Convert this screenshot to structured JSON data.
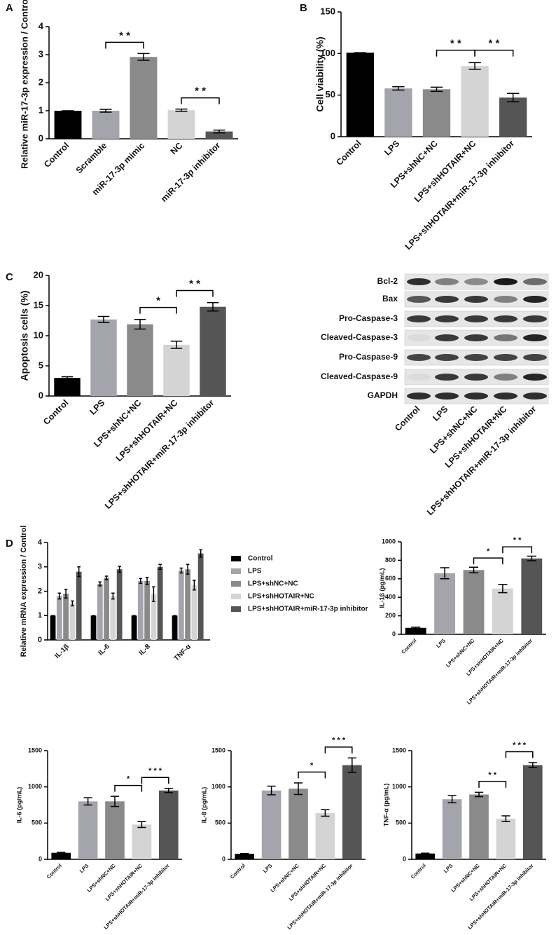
{
  "chart_data": [
    {
      "type": "bar",
      "panel": "A",
      "ylabel": "Relative miR-17-3p expression / Control",
      "categories": [
        "Control",
        "Scramble",
        "miR-17-3p mimic",
        "NC",
        "miR-17-3p inhibitor"
      ],
      "values": [
        1.0,
        1.0,
        2.92,
        1.02,
        0.26
      ],
      "errors": [
        0,
        0.05,
        0.12,
        0.04,
        0.05
      ],
      "colors": [
        "#000000",
        "#a4a4ac",
        "#8a8a8a",
        "#d4d4d4",
        "#555555"
      ],
      "ylim": [
        0,
        4
      ],
      "yticks": [
        0,
        1,
        2,
        3,
        4
      ],
      "significance": [
        {
          "from": 1,
          "to": 2,
          "label": "* *"
        },
        {
          "from": 3,
          "to": 4,
          "label": "* *"
        }
      ]
    },
    {
      "type": "bar",
      "panel": "B",
      "ylabel": "Cell viability (%)",
      "categories": [
        "Control",
        "LPS",
        "LPS+shNC+NC",
        "LPS+shHOTAIR+NC",
        "LPS+shHOTAIR+miR-17-3p inhibitor"
      ],
      "values": [
        101,
        58,
        57,
        85,
        47
      ],
      "errors": [
        0,
        2,
        2.5,
        4,
        5
      ],
      "colors": [
        "#000000",
        "#a4a4ac",
        "#8a8a8a",
        "#d4d4d4",
        "#555555"
      ],
      "ylim": [
        0,
        150
      ],
      "yticks": [
        0,
        50,
        100,
        150
      ],
      "significance": [
        {
          "from": 2,
          "to": 3,
          "label": "* *"
        },
        {
          "from": 3,
          "to": 4,
          "label": "* *"
        }
      ]
    },
    {
      "type": "bar",
      "panel": "C",
      "ylabel": "Apoptosis cells (%)",
      "categories": [
        "Control",
        "LPS",
        "LPS+shNC+NC",
        "LPS+shHOTAIR+NC",
        "LPS+shHOTAIR+miR-17-3p inhibitor"
      ],
      "values": [
        3.0,
        12.7,
        11.9,
        8.5,
        14.8
      ],
      "errors": [
        0.2,
        0.5,
        0.8,
        0.6,
        0.7
      ],
      "colors": [
        "#000000",
        "#a4a4ac",
        "#8a8a8a",
        "#d4d4d4",
        "#555555"
      ],
      "ylim": [
        0,
        20
      ],
      "yticks": [
        0,
        5,
        10,
        15,
        20
      ],
      "significance": [
        {
          "from": 2,
          "to": 3,
          "label": "*"
        },
        {
          "from": 3,
          "to": 4,
          "label": "* *"
        }
      ]
    },
    {
      "type": "grouped_bar",
      "panel": "D",
      "ylabel": "Relative mRNA expression / Control",
      "categories": [
        "IL-1β",
        "IL-6",
        "IL-8",
        "TNF-α"
      ],
      "series": [
        {
          "name": "Control",
          "color": "#000000",
          "values": [
            1,
            1,
            1,
            1
          ],
          "errors": [
            0,
            0,
            0,
            0
          ]
        },
        {
          "name": "LPS",
          "color": "#a4a4ac",
          "values": [
            1.8,
            2.3,
            2.42,
            2.85
          ],
          "errors": [
            0.12,
            0.08,
            0.1,
            0.1
          ]
        },
        {
          "name": "LPS+shNC+NC",
          "color": "#8a8a8a",
          "values": [
            1.9,
            2.55,
            2.42,
            2.9
          ],
          "errors": [
            0.18,
            0.07,
            0.15,
            0.2
          ]
        },
        {
          "name": "LPS+shHOTAIR+NC",
          "color": "#d4d4d4",
          "values": [
            1.5,
            1.8,
            1.88,
            2.25
          ],
          "errors": [
            0.1,
            0.12,
            0.3,
            0.2
          ]
        },
        {
          "name": "LPS+shHOTAIR+miR-17-3p inhibitor",
          "color": "#555555",
          "values": [
            2.8,
            2.9,
            3.0,
            3.55
          ],
          "errors": [
            0.2,
            0.12,
            0.1,
            0.15
          ]
        }
      ],
      "ylim": [
        0,
        4
      ],
      "yticks": [
        0,
        1,
        2,
        3,
        4
      ]
    },
    {
      "type": "bar",
      "ylabel": "IL-1β (pg/mL)",
      "categories": [
        "Control",
        "LPS",
        "LPS+shNC+NC",
        "LPS+shHOTAIR+NC",
        "LPS+shHOTAIR+miR-17-3p inhibitor"
      ],
      "values": [
        70,
        660,
        695,
        495,
        820
      ],
      "errors": [
        8,
        60,
        30,
        45,
        25
      ],
      "colors": [
        "#000000",
        "#a4a4ac",
        "#8a8a8a",
        "#d4d4d4",
        "#555555"
      ],
      "ylim": [
        0,
        1000
      ],
      "yticks": [
        0,
        200,
        400,
        600,
        800,
        1000
      ],
      "significance": [
        {
          "from": 2,
          "to": 3,
          "label": "*"
        },
        {
          "from": 3,
          "to": 4,
          "label": "* *"
        }
      ]
    },
    {
      "type": "bar",
      "ylabel": "IL-6 (pg/mL)",
      "categories": [
        "Control",
        "LPS",
        "LPS+shNC+NC",
        "LPS+shHOTAIR+NC",
        "LPS+shHOTAIR+miR-17-3p inhibitor"
      ],
      "values": [
        90,
        800,
        800,
        480,
        950
      ],
      "errors": [
        5,
        50,
        70,
        40,
        30
      ],
      "colors": [
        "#000000",
        "#a4a4ac",
        "#8a8a8a",
        "#d4d4d4",
        "#555555"
      ],
      "ylim": [
        0,
        1500
      ],
      "yticks": [
        0,
        500,
        1000,
        1500
      ],
      "significance": [
        {
          "from": 2,
          "to": 3,
          "label": "*"
        },
        {
          "from": 3,
          "to": 4,
          "label": "* * *"
        }
      ]
    },
    {
      "type": "bar",
      "ylabel": "IL-8 (pg/mL)",
      "categories": [
        "Control",
        "LPS",
        "LPS+shNC+NC",
        "LPS+shHOTAIR+NC",
        "LPS+shHOTAIR+miR-17-3p inhibitor"
      ],
      "values": [
        75,
        950,
        975,
        640,
        1300
      ],
      "errors": [
        5,
        60,
        80,
        45,
        100
      ],
      "colors": [
        "#000000",
        "#a4a4ac",
        "#8a8a8a",
        "#d4d4d4",
        "#555555"
      ],
      "ylim": [
        0,
        1500
      ],
      "yticks": [
        0,
        500,
        1000,
        1500
      ],
      "significance": [
        {
          "from": 2,
          "to": 3,
          "label": "*"
        },
        {
          "from": 3,
          "to": 4,
          "label": "* * *"
        }
      ]
    },
    {
      "type": "bar",
      "ylabel": "TNF-α (pg/mL)",
      "categories": [
        "Control",
        "LPS",
        "LPS+shNC+NC",
        "LPS+shHOTAIR+NC",
        "LPS+shHOTAIR+miR-17-3p inhibitor"
      ],
      "values": [
        80,
        830,
        895,
        560,
        1300
      ],
      "errors": [
        5,
        50,
        30,
        40,
        35
      ],
      "colors": [
        "#000000",
        "#a4a4ac",
        "#8a8a8a",
        "#d4d4d4",
        "#555555"
      ],
      "ylim": [
        0,
        1500
      ],
      "yticks": [
        0,
        500,
        1000,
        1500
      ],
      "significance": [
        {
          "from": 2,
          "to": 3,
          "label": "* *"
        },
        {
          "from": 3,
          "to": 4,
          "label": "* * *"
        }
      ]
    }
  ],
  "blot": {
    "lanes": [
      "Control",
      "LPS",
      "LPS+shNC+NC",
      "LPS+shHOTAIR+NC",
      "LPS+shHOTAIR+miR-17-3p inhibitor"
    ],
    "rows": [
      {
        "label": "Bcl-2",
        "intensity": [
          0.9,
          0.5,
          0.45,
          1.0,
          0.6
        ]
      },
      {
        "label": "Bax",
        "intensity": [
          0.7,
          0.85,
          0.85,
          0.5,
          0.95
        ]
      },
      {
        "label": "Pro-Caspase-3",
        "intensity": [
          0.85,
          0.85,
          0.85,
          0.85,
          0.85
        ]
      },
      {
        "label": "Cleaved-Caspase-3",
        "intensity": [
          0.05,
          0.85,
          0.85,
          0.55,
          0.95
        ]
      },
      {
        "label": "Pro-Caspase-9",
        "intensity": [
          0.8,
          0.8,
          0.8,
          0.8,
          0.8
        ]
      },
      {
        "label": "Cleaved-Caspase-9",
        "intensity": [
          0.05,
          0.85,
          0.85,
          0.5,
          0.95
        ]
      },
      {
        "label": "GAPDH",
        "intensity": [
          0.9,
          0.9,
          0.9,
          0.9,
          0.9
        ]
      }
    ]
  }
}
